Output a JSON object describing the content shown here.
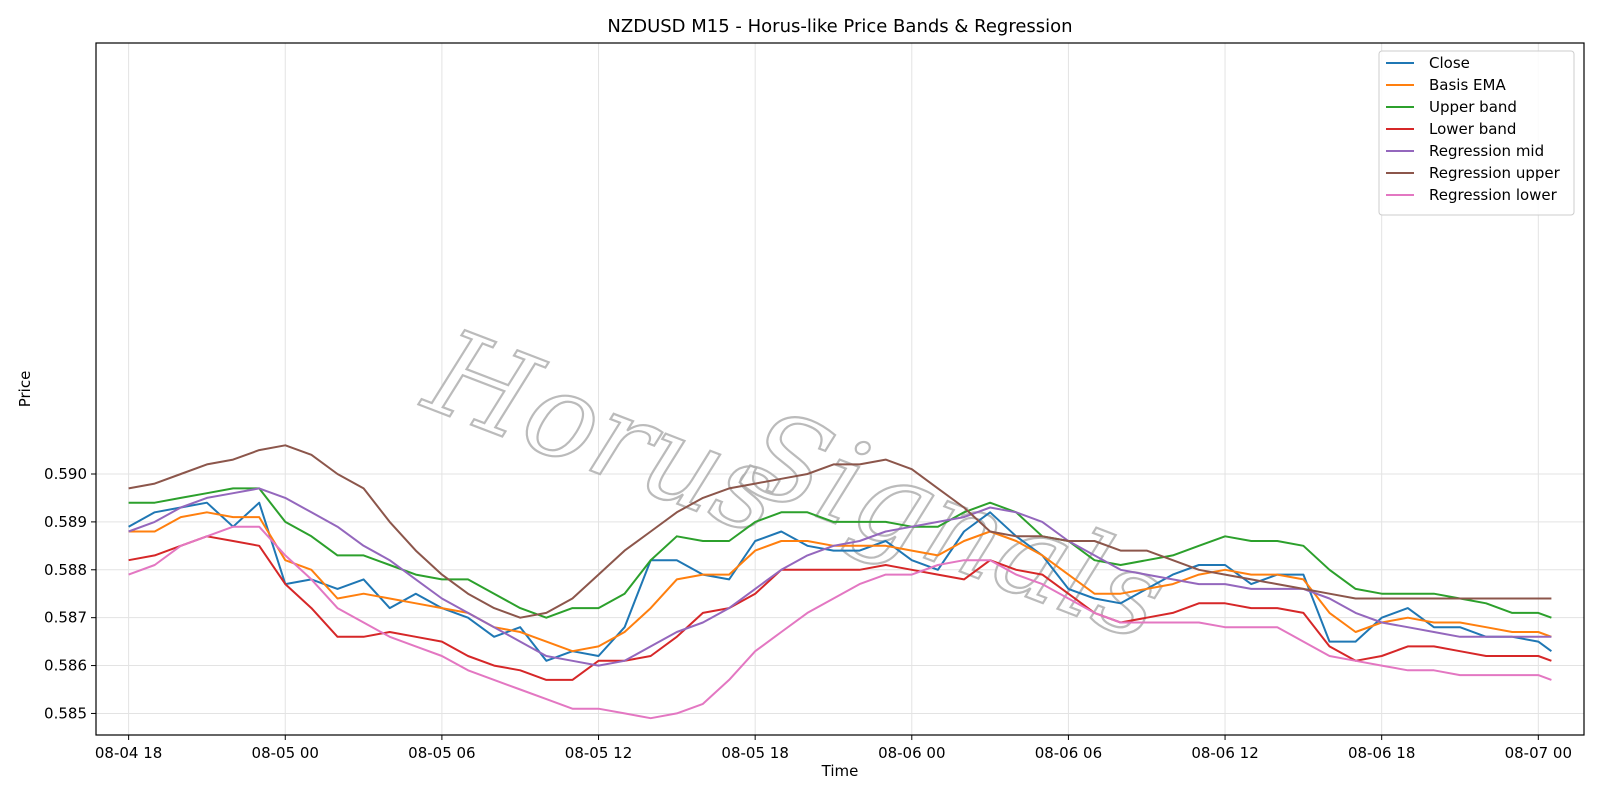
{
  "chart_data": {
    "type": "line",
    "title": "NZDUSD M15 - Horus-like Price Bands & Regression",
    "xlabel": "Time",
    "ylabel": "Price",
    "xlim": [
      "2025-08-04T16:45",
      "2025-08-07T01:45"
    ],
    "ylim": [
      0.58455,
      0.599
    ],
    "x_ticks": [
      "08-04 18",
      "08-05 00",
      "08-05 06",
      "08-05 12",
      "08-05 18",
      "08-06 00",
      "08-06 06",
      "08-06 12",
      "08-06 18",
      "08-07 00"
    ],
    "y_ticks": [
      "0.585",
      "0.586",
      "0.587",
      "0.588",
      "0.589",
      "0.590"
    ],
    "grid": true,
    "legend_position": "top-right",
    "watermark": "Horus Signals",
    "x": [
      "2025-08-04T18:00",
      "2025-08-04T19:00",
      "2025-08-04T20:00",
      "2025-08-04T21:00",
      "2025-08-04T22:00",
      "2025-08-04T23:00",
      "2025-08-05T00:00",
      "2025-08-05T01:00",
      "2025-08-05T02:00",
      "2025-08-05T03:00",
      "2025-08-05T04:00",
      "2025-08-05T05:00",
      "2025-08-05T06:00",
      "2025-08-05T07:00",
      "2025-08-05T08:00",
      "2025-08-05T09:00",
      "2025-08-05T10:00",
      "2025-08-05T11:00",
      "2025-08-05T12:00",
      "2025-08-05T13:00",
      "2025-08-05T14:00",
      "2025-08-05T15:00",
      "2025-08-05T16:00",
      "2025-08-05T17:00",
      "2025-08-05T18:00",
      "2025-08-05T19:00",
      "2025-08-05T20:00",
      "2025-08-05T21:00",
      "2025-08-05T22:00",
      "2025-08-05T23:00",
      "2025-08-06T00:00",
      "2025-08-06T01:00",
      "2025-08-06T02:00",
      "2025-08-06T03:00",
      "2025-08-06T04:00",
      "2025-08-06T05:00",
      "2025-08-06T06:00",
      "2025-08-06T07:00",
      "2025-08-06T08:00",
      "2025-08-06T09:00",
      "2025-08-06T10:00",
      "2025-08-06T11:00",
      "2025-08-06T12:00",
      "2025-08-06T13:00",
      "2025-08-06T14:00",
      "2025-08-06T15:00",
      "2025-08-06T16:00",
      "2025-08-06T17:00",
      "2025-08-06T18:00",
      "2025-08-06T19:00",
      "2025-08-06T20:00",
      "2025-08-06T21:00",
      "2025-08-06T22:00",
      "2025-08-06T23:00",
      "2025-08-07T00:00",
      "2025-08-07T00:30"
    ],
    "series": [
      {
        "name": "Close",
        "color": "#1f77b4",
        "values": [
          0.5889,
          0.5892,
          0.5893,
          0.5894,
          0.5889,
          0.5894,
          0.5877,
          0.5878,
          0.5876,
          0.5878,
          0.5872,
          0.5875,
          0.5872,
          0.587,
          0.5866,
          0.5868,
          0.5861,
          0.5863,
          0.5862,
          0.5868,
          0.5882,
          0.5882,
          0.5879,
          0.5878,
          0.5886,
          0.5888,
          0.5885,
          0.5884,
          0.5884,
          0.5886,
          0.5882,
          0.588,
          0.5888,
          0.5892,
          0.5887,
          0.5883,
          0.5876,
          0.5874,
          0.5873,
          0.5876,
          0.5879,
          0.5881,
          0.5881,
          0.5877,
          0.5879,
          0.5879,
          0.5865,
          0.5865,
          0.587,
          0.5872,
          0.5868,
          0.5868,
          0.5866,
          0.5866,
          0.5865,
          0.5863
        ]
      },
      {
        "name": "Basis EMA",
        "color": "#ff7f0e",
        "values": [
          0.5888,
          0.5888,
          0.5891,
          0.5892,
          0.5891,
          0.5891,
          0.5882,
          0.588,
          0.5874,
          0.5875,
          0.5874,
          0.5873,
          0.5872,
          0.5871,
          0.5868,
          0.5867,
          0.5865,
          0.5863,
          0.5864,
          0.5867,
          0.5872,
          0.5878,
          0.5879,
          0.5879,
          0.5884,
          0.5886,
          0.5886,
          0.5885,
          0.5885,
          0.5885,
          0.5884,
          0.5883,
          0.5886,
          0.5888,
          0.5886,
          0.5883,
          0.5879,
          0.5875,
          0.5875,
          0.5876,
          0.5877,
          0.5879,
          0.588,
          0.5879,
          0.5879,
          0.5878,
          0.5871,
          0.5867,
          0.5869,
          0.587,
          0.5869,
          0.5869,
          0.5868,
          0.5867,
          0.5867,
          0.5866
        ]
      },
      {
        "name": "Upper band",
        "color": "#2ca02c",
        "values": [
          0.5894,
          0.5894,
          0.5895,
          0.5896,
          0.5897,
          0.5897,
          0.589,
          0.5887,
          0.5883,
          0.5883,
          0.5881,
          0.5879,
          0.5878,
          0.5878,
          0.5875,
          0.5872,
          0.587,
          0.5872,
          0.5872,
          0.5875,
          0.5882,
          0.5887,
          0.5886,
          0.5886,
          0.589,
          0.5892,
          0.5892,
          0.589,
          0.589,
          0.589,
          0.5889,
          0.5889,
          0.5892,
          0.5894,
          0.5892,
          0.5887,
          0.5886,
          0.5882,
          0.5881,
          0.5882,
          0.5883,
          0.5885,
          0.5887,
          0.5886,
          0.5886,
          0.5885,
          0.588,
          0.5876,
          0.5875,
          0.5875,
          0.5875,
          0.5874,
          0.5873,
          0.5871,
          0.5871,
          0.587
        ]
      },
      {
        "name": "Lower band",
        "color": "#d62728",
        "values": [
          0.5882,
          0.5883,
          0.5885,
          0.5887,
          0.5886,
          0.5885,
          0.5877,
          0.5872,
          0.5866,
          0.5866,
          0.5867,
          0.5866,
          0.5865,
          0.5862,
          0.586,
          0.5859,
          0.5857,
          0.5857,
          0.5861,
          0.5861,
          0.5862,
          0.5866,
          0.5871,
          0.5872,
          0.5875,
          0.588,
          0.588,
          0.588,
          0.588,
          0.5881,
          0.588,
          0.5879,
          0.5878,
          0.5882,
          0.588,
          0.5879,
          0.5875,
          0.5871,
          0.5869,
          0.587,
          0.5871,
          0.5873,
          0.5873,
          0.5872,
          0.5872,
          0.5871,
          0.5864,
          0.5861,
          0.5862,
          0.5864,
          0.5864,
          0.5863,
          0.5862,
          0.5862,
          0.5862,
          0.5861
        ]
      },
      {
        "name": "Regression mid",
        "color": "#9467bd",
        "values": [
          0.5888,
          0.589,
          0.5893,
          0.5895,
          0.5896,
          0.5897,
          0.5895,
          0.5892,
          0.5889,
          0.5885,
          0.5882,
          0.5878,
          0.5874,
          0.5871,
          0.5868,
          0.5865,
          0.5862,
          0.5861,
          0.586,
          0.5861,
          0.5864,
          0.5867,
          0.5869,
          0.5872,
          0.5876,
          0.588,
          0.5883,
          0.5885,
          0.5886,
          0.5888,
          0.5889,
          0.589,
          0.5891,
          0.5893,
          0.5892,
          0.589,
          0.5886,
          0.5883,
          0.588,
          0.5879,
          0.5878,
          0.5877,
          0.5877,
          0.5876,
          0.5876,
          0.5876,
          0.5874,
          0.5871,
          0.5869,
          0.5868,
          0.5867,
          0.5866,
          0.5866,
          0.5866,
          0.5866,
          0.5866
        ]
      },
      {
        "name": "Regression upper",
        "color": "#8c564b",
        "values": [
          0.5897,
          0.5898,
          0.59,
          0.5902,
          0.5903,
          0.5905,
          0.5906,
          0.5904,
          0.59,
          0.5897,
          0.589,
          0.5884,
          0.5879,
          0.5875,
          0.5872,
          0.587,
          0.5871,
          0.5874,
          0.5879,
          0.5884,
          0.5888,
          0.5892,
          0.5895,
          0.5897,
          0.5898,
          0.5899,
          0.59,
          0.5902,
          0.5902,
          0.5903,
          0.5901,
          0.5897,
          0.5893,
          0.5888,
          0.5887,
          0.5887,
          0.5886,
          0.5886,
          0.5884,
          0.5884,
          0.5882,
          0.588,
          0.5879,
          0.5878,
          0.5877,
          0.5876,
          0.5875,
          0.5874,
          0.5874,
          0.5874,
          0.5874,
          0.5874,
          0.5874,
          0.5874,
          0.5874,
          0.5874
        ]
      },
      {
        "name": "Regression lower",
        "color": "#e377c2",
        "values": [
          0.5879,
          0.5881,
          0.5885,
          0.5887,
          0.5889,
          0.5889,
          0.5883,
          0.5878,
          0.5872,
          0.5869,
          0.5866,
          0.5864,
          0.5862,
          0.5859,
          0.5857,
          0.5855,
          0.5853,
          0.5851,
          0.5851,
          0.585,
          0.5849,
          0.585,
          0.5852,
          0.5857,
          0.5863,
          0.5867,
          0.5871,
          0.5874,
          0.5877,
          0.5879,
          0.5879,
          0.5881,
          0.5882,
          0.5882,
          0.5879,
          0.5877,
          0.5874,
          0.5871,
          0.5869,
          0.5869,
          0.5869,
          0.5869,
          0.5868,
          0.5868,
          0.5868,
          0.5865,
          0.5862,
          0.5861,
          0.586,
          0.5859,
          0.5859,
          0.5858,
          0.5858,
          0.5858,
          0.5858,
          0.5857
        ]
      }
    ]
  }
}
